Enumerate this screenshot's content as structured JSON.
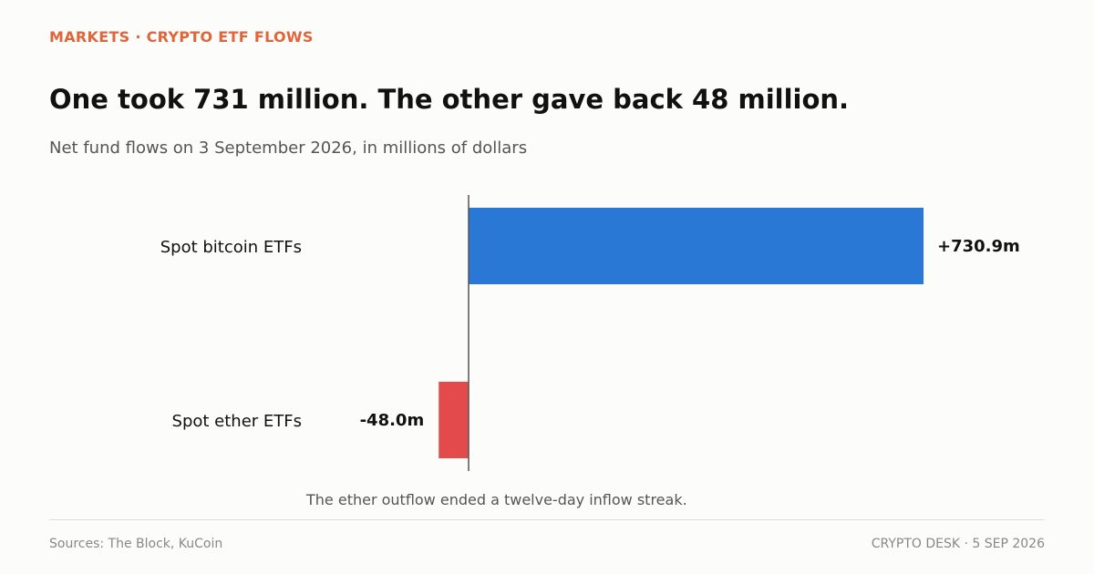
{
  "header": {
    "kicker": "MARKETS · CRYPTO ETF FLOWS",
    "title": "One took 731 million. The other gave back 48 million.",
    "subtitle": "Net fund flows on 3 September 2026, in millions of dollars"
  },
  "chart_data": {
    "type": "bar",
    "orientation": "horizontal",
    "categories": [
      "Spot bitcoin ETFs",
      "Spot ether ETFs"
    ],
    "values": [
      730.9,
      -48.0
    ],
    "value_labels": [
      "+730.9m",
      "-48.0m"
    ],
    "colors": [
      "#2a78d6",
      "#e34a4a"
    ],
    "xlim": [
      -48.0,
      730.9
    ],
    "grid": false,
    "annotation": "The ether outflow ended a twelve-day inflow streak."
  },
  "footer": {
    "source": "Sources: The Block, KuCoin",
    "credit": "CRYPTO DESK  ·  5 SEP 2026"
  }
}
